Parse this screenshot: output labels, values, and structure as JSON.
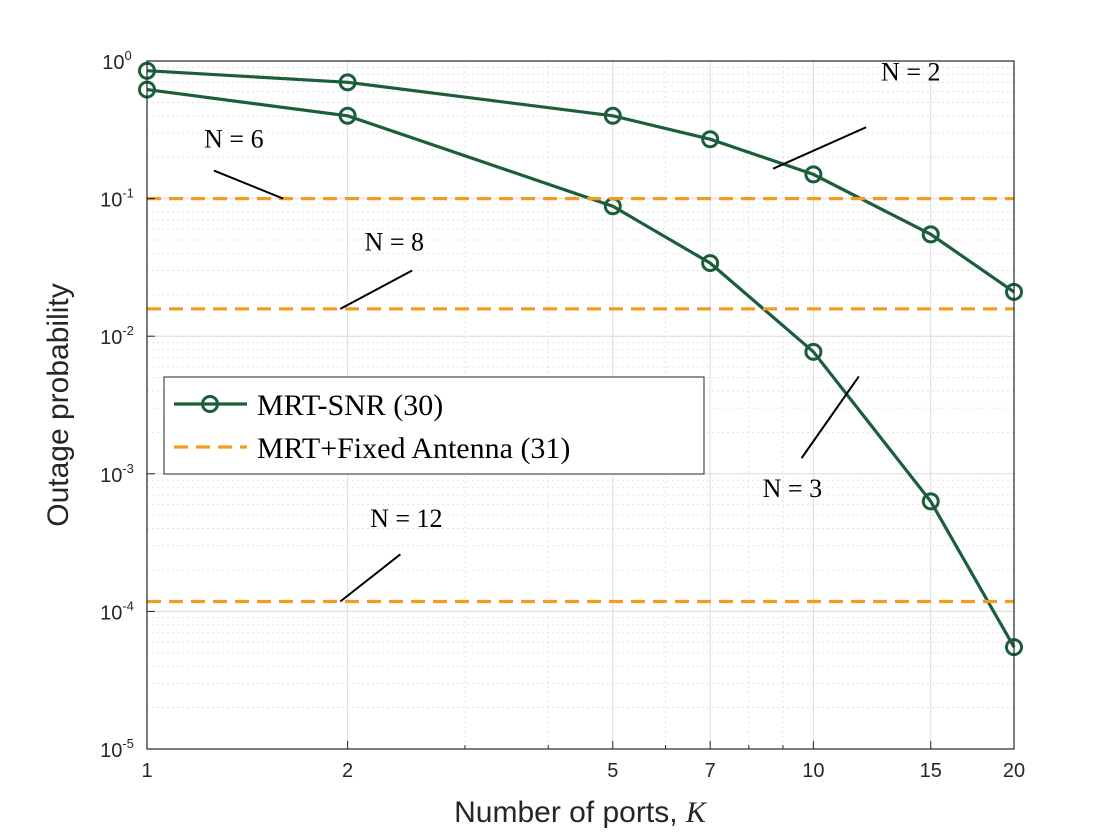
{
  "chart_data": {
    "type": "line",
    "xlabel": "Number of ports, ",
    "xlabel_var": "K",
    "ylabel": "Outage probability",
    "xscale": "log",
    "yscale": "log",
    "xlim": [
      1,
      20
    ],
    "ylim": [
      1e-05,
      1
    ],
    "xticks": [
      1,
      2,
      5,
      7,
      10,
      15,
      20
    ],
    "xtick_labels": [
      "1",
      "2",
      "5",
      "7",
      "10",
      "15",
      "20"
    ],
    "yticks": [
      {
        "base": "10",
        "exp": "-5",
        "value": 1e-05
      },
      {
        "base": "10",
        "exp": "-4",
        "value": 0.0001
      },
      {
        "base": "10",
        "exp": "-3",
        "value": 0.001
      },
      {
        "base": "10",
        "exp": "-2",
        "value": 0.01
      },
      {
        "base": "10",
        "exp": "-1",
        "value": 0.1
      },
      {
        "base": "10",
        "exp": "0",
        "value": 1
      }
    ],
    "grid": true,
    "legend_placement": "middle-left",
    "colors": {
      "mrt_snr": "#1a5e3a",
      "fixed": "#f39c1f",
      "axis": "#262626",
      "grid": "#dcdcdc"
    },
    "series": [
      {
        "name": "MRT-SNR (30)",
        "style": "solid-circle",
        "color": "#1a5e3a",
        "x": [
          1,
          2,
          5,
          7,
          10,
          15,
          20
        ],
        "y": [
          0.85,
          0.7,
          0.4,
          0.27,
          0.15,
          0.055,
          0.021
        ]
      },
      {
        "name": "",
        "style": "solid-circle",
        "color": "#1a5e3a",
        "x": [
          1,
          2,
          5,
          7,
          10,
          15,
          20
        ],
        "y": [
          0.62,
          0.4,
          0.088,
          0.034,
          0.0077,
          0.00063,
          5.5e-05
        ]
      },
      {
        "name": "MRT+Fixed Antenna (31)",
        "style": "dashed",
        "color": "#f39c1f",
        "x": [
          1,
          20
        ],
        "y": [
          0.1,
          0.1
        ]
      },
      {
        "name": "",
        "style": "dashed",
        "color": "#f39c1f",
        "x": [
          1,
          20
        ],
        "y": [
          0.0158,
          0.0158
        ]
      },
      {
        "name": "",
        "style": "dashed",
        "color": "#f39c1f",
        "x": [
          1,
          20
        ],
        "y": [
          0.000118,
          0.000118
        ]
      }
    ],
    "annotations": [
      {
        "text": "N = 2",
        "text_x": 14.0,
        "text_y": 0.72,
        "line": [
          [
            12.0,
            0.33
          ],
          [
            8.7,
            0.165
          ]
        ]
      },
      {
        "text": "N = 6",
        "text_x": 1.35,
        "text_y": 0.235,
        "line": [
          [
            1.26,
            0.16
          ],
          [
            1.6,
            0.1
          ]
        ]
      },
      {
        "text": "N = 8",
        "text_x": 2.35,
        "text_y": 0.042,
        "line": [
          [
            2.5,
            0.03
          ],
          [
            1.95,
            0.0158
          ]
        ]
      },
      {
        "text": "N = 3",
        "text_x": 9.3,
        "text_y": 0.00068,
        "line": [
          [
            9.6,
            0.0013
          ],
          [
            11.7,
            0.0051
          ]
        ]
      },
      {
        "text": "N = 12",
        "text_x": 2.45,
        "text_y": 0.00041,
        "line": [
          [
            2.4,
            0.00026
          ],
          [
            1.95,
            0.000118
          ]
        ]
      }
    ]
  }
}
